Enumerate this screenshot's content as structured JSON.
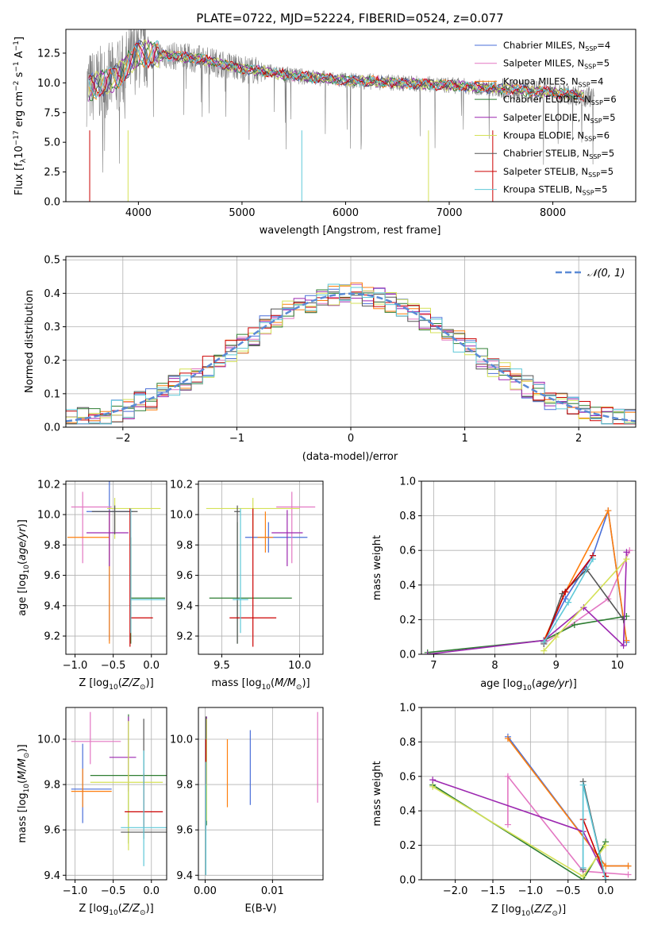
{
  "figure_title": "PLATE=0722, MJD=52224, FIBERID=0524, z=0.077",
  "colors": {
    "Chabrier MILES": "#4a6fd8",
    "Salpeter MILES": "#e377c2",
    "Kroupa MILES": "#ff7f0e",
    "Chabrier ELODIE": "#2e7d32",
    "Salpeter ELODIE": "#9c27b0",
    "Kroupa ELODIE": "#d4e157",
    "Chabrier STELIB": "#555555",
    "Salpeter STELIB": "#cc0000",
    "Kroupa STELIB": "#5ec8d8",
    "data": "#808080",
    "normal": "#5b8ad6"
  },
  "legend": [
    {
      "name": "Chabrier MILES",
      "nssp": "4"
    },
    {
      "name": "Salpeter MILES",
      "nssp": "5"
    },
    {
      "name": "Kroupa MILES",
      "nssp": "4"
    },
    {
      "name": "Chabrier ELODIE",
      "nssp": "6"
    },
    {
      "name": "Salpeter ELODIE",
      "nssp": "5"
    },
    {
      "name": "Kroupa ELODIE",
      "nssp": "6"
    },
    {
      "name": "Chabrier STELIB",
      "nssp": "5"
    },
    {
      "name": "Salpeter STELIB",
      "nssp": "5"
    },
    {
      "name": "Kroupa STELIB",
      "nssp": "5"
    }
  ],
  "chart_data": [
    {
      "type": "line",
      "xlabel": "wavelength [Angstrom, rest frame]",
      "ylabel": "Flux [f_λ10^-17 erg cm^-2 s^-1 A^-1]",
      "xlim": [
        3300,
        8800
      ],
      "ylim": [
        0,
        14.5
      ],
      "xticks": [
        "4000",
        "5000",
        "6000",
        "7000",
        "8000"
      ],
      "yticks": [
        "0.0",
        "2.5",
        "5.0",
        "7.5",
        "10.0",
        "12.5"
      ],
      "data_x_range": [
        3500,
        8400
      ],
      "approx_continuum": [
        [
          3500,
          9.5
        ],
        [
          3800,
          10.5
        ],
        [
          4000,
          12.5
        ],
        [
          4300,
          12.3
        ],
        [
          4600,
          12
        ],
        [
          5000,
          11.2
        ],
        [
          5500,
          10.6
        ],
        [
          6000,
          10.2
        ],
        [
          6500,
          10
        ],
        [
          7000,
          9.8
        ],
        [
          7500,
          9.5
        ],
        [
          8000,
          9.2
        ],
        [
          8400,
          8.8
        ]
      ]
    },
    {
      "type": "line",
      "xlabel": "(data-model)/error",
      "ylabel": "Normed distribution",
      "xlim": [
        -2.5,
        2.5
      ],
      "ylim": [
        0,
        0.51
      ],
      "xticks": [
        "−2",
        "−1",
        "0",
        "1",
        "2"
      ],
      "yticks": [
        "0.0",
        "0.1",
        "0.2",
        "0.3",
        "0.4",
        "0.5"
      ],
      "legend": "𝒩(0, 1)",
      "normal_mean": 0,
      "normal_sigma": 1
    },
    {
      "type": "scatter",
      "xlabel": "Z [log10(Z/Z⊙)]",
      "ylabel": "age [log10(age/yr)]",
      "xlim": [
        -1.12,
        0.2
      ],
      "ylim": [
        9.08,
        10.22
      ],
      "xticks": [
        "−1.0",
        "−0.5",
        "0.0"
      ],
      "yticks": [
        "9.2",
        "9.4",
        "9.6",
        "9.8",
        "10.0",
        "10.2"
      ],
      "points": [
        {
          "s": "Chabrier MILES",
          "x": -0.55,
          "y": 10.02,
          "xe": [
            0.3,
            0.3
          ],
          "ye": [
            0.85,
            0.2
          ]
        },
        {
          "s": "Salpeter MILES",
          "x": -0.9,
          "y": 10.05,
          "xe": [
            0.15,
            0.38
          ],
          "ye": [
            0.37,
            0.1
          ]
        },
        {
          "s": "Kroupa MILES",
          "x": -0.55,
          "y": 9.85,
          "xe": [
            0.55,
            0
          ],
          "ye": [
            0.7,
            0.17
          ]
        },
        {
          "s": "Chabrier ELODIE",
          "x": -0.27,
          "y": 9.45,
          "xe": [
            0,
            0.45
          ],
          "ye": [
            0.3,
            0.4
          ]
        },
        {
          "s": "Salpeter ELODIE",
          "x": -0.55,
          "y": 9.88,
          "xe": [
            0.3,
            0.25
          ],
          "ye": [
            0.22,
            0.15
          ]
        },
        {
          "s": "Kroupa ELODIE",
          "x": -0.48,
          "y": 10.04,
          "xe": [
            0.1,
            0.6
          ],
          "ye": [
            0.2,
            0.07
          ]
        },
        {
          "s": "Chabrier STELIB",
          "x": -0.48,
          "y": 10.02,
          "xe": [
            0.3,
            0.3
          ],
          "ye": [
            0.15,
            0.04
          ]
        },
        {
          "s": "Salpeter STELIB",
          "x": -0.28,
          "y": 9.32,
          "xe": [
            0,
            0.3
          ],
          "ye": [
            0.19,
            0.72
          ]
        },
        {
          "s": "Kroupa STELIB",
          "x": -0.27,
          "y": 9.44,
          "xe": [
            0,
            0.45
          ],
          "ye": [
            0.22,
            0.6
          ]
        }
      ]
    },
    {
      "type": "scatter",
      "xlabel": "mass [log10(M/M⊙)]",
      "ylabel": "",
      "xlim": [
        9.35,
        10.15
      ],
      "ylim": [
        9.08,
        10.22
      ],
      "xticks": [
        "9.5",
        "10.0"
      ],
      "yticks": [
        "9.2",
        "9.4",
        "9.6",
        "9.8",
        "10.0",
        "10.2"
      ],
      "points": [
        {
          "s": "Chabrier MILES",
          "x": 9.8,
          "y": 9.85,
          "xe": [
            0.15,
            0.25
          ],
          "ye": [
            0.1,
            0.1
          ]
        },
        {
          "s": "Salpeter MILES",
          "x": 9.95,
          "y": 10.05,
          "xe": [
            0.1,
            0.15
          ],
          "ye": [
            0.37,
            0.1
          ]
        },
        {
          "s": "Kroupa MILES",
          "x": 9.78,
          "y": 9.85,
          "xe": [
            0.05,
            0.05
          ],
          "ye": [
            0.1,
            0.17
          ]
        },
        {
          "s": "Chabrier ELODIE",
          "x": 9.6,
          "y": 9.45,
          "xe": [
            0.18,
            0.35
          ],
          "ye": [
            0.3,
            0.5
          ]
        },
        {
          "s": "Salpeter ELODIE",
          "x": 9.92,
          "y": 9.88,
          "xe": [
            0.1,
            0.1
          ],
          "ye": [
            0.22,
            0.15
          ]
        },
        {
          "s": "Kroupa ELODIE",
          "x": 9.7,
          "y": 10.04,
          "xe": [
            0.3,
            0.3
          ],
          "ye": [
            0.2,
            0.07
          ]
        },
        {
          "s": "Chabrier STELIB",
          "x": 9.6,
          "y": 10.02,
          "xe": [
            0.02,
            0.02
          ],
          "ye": [
            0.87,
            0.04
          ]
        },
        {
          "s": "Salpeter STELIB",
          "x": 9.7,
          "y": 9.32,
          "xe": [
            0.15,
            0.15
          ],
          "ye": [
            0.19,
            0.72
          ]
        },
        {
          "s": "Kroupa STELIB",
          "x": 9.62,
          "y": 9.44,
          "xe": [
            0.05,
            0.05
          ],
          "ye": [
            0.22,
            0.6
          ]
        }
      ]
    },
    {
      "type": "line",
      "xlabel": "age [log10(age/yr)]",
      "ylabel": "mass weight",
      "xlim": [
        6.8,
        10.3
      ],
      "ylim": [
        0,
        1
      ],
      "xticks": [
        "7",
        "8",
        "9",
        "10"
      ],
      "yticks": [
        "0.0",
        "0.2",
        "0.4",
        "0.6",
        "0.8",
        "1.0"
      ],
      "series": [
        {
          "s": "Chabrier MILES",
          "x": [
            8.8,
            9.15,
            9.6,
            9.85,
            10.15
          ],
          "y": [
            0.08,
            0.32,
            0.57,
            0.83,
            0.07
          ]
        },
        {
          "s": "Salpeter MILES",
          "x": [
            8.8,
            9.85,
            10.2
          ],
          "y": [
            0.06,
            0.32,
            0.6
          ]
        },
        {
          "s": "Kroupa MILES",
          "x": [
            8.8,
            9.15,
            9.85,
            10.15
          ],
          "y": [
            0.08,
            0.36,
            0.83,
            0.08
          ]
        },
        {
          "s": "Chabrier ELODIE",
          "x": [
            6.9,
            8.8,
            9.3,
            10.15
          ],
          "y": [
            0.01,
            0.08,
            0.17,
            0.22
          ]
        },
        {
          "s": "Salpeter ELODIE",
          "x": [
            6.9,
            8.8,
            9.45,
            10.1,
            10.15
          ],
          "y": [
            0.0,
            0.08,
            0.27,
            0.05,
            0.59
          ]
        },
        {
          "s": "Kroupa ELODIE",
          "x": [
            8.8,
            9.0,
            10.15
          ],
          "y": [
            0.02,
            0.1,
            0.55
          ]
        },
        {
          "s": "Chabrier STELIB",
          "x": [
            8.8,
            9.1,
            9.5,
            10.1
          ],
          "y": [
            0.06,
            0.35,
            0.49,
            0.2
          ]
        },
        {
          "s": "Salpeter STELIB",
          "x": [
            8.8,
            9.15,
            9.6
          ],
          "y": [
            0.07,
            0.36,
            0.57
          ]
        },
        {
          "s": "Kroupa STELIB",
          "x": [
            8.8,
            9.2,
            9.6
          ],
          "y": [
            0.07,
            0.3,
            0.55
          ]
        }
      ]
    },
    {
      "type": "scatter",
      "xlabel": "Z [log10(Z/Z⊙)]",
      "ylabel": "mass [log10(M/M⊙)]",
      "xlim": [
        -1.12,
        0.2
      ],
      "ylim": [
        9.38,
        10.14
      ],
      "xticks": [
        "−1.0",
        "−0.5",
        "0.0"
      ],
      "yticks": [
        "9.4",
        "9.6",
        "9.8",
        "10.0"
      ],
      "points": [
        {
          "s": "Chabrier MILES",
          "x": -0.9,
          "y": 9.78,
          "xe": [
            0.15,
            0.38
          ],
          "ye": [
            0.15,
            0.2
          ]
        },
        {
          "s": "Salpeter MILES",
          "x": -0.8,
          "y": 9.99,
          "xe": [
            0.25,
            0.4
          ],
          "ye": [
            0.1,
            0.13
          ]
        },
        {
          "s": "Kroupa MILES",
          "x": -0.9,
          "y": 9.77,
          "xe": [
            0.15,
            0.38
          ],
          "ye": [
            0.07,
            0.1
          ]
        },
        {
          "s": "Chabrier ELODIE",
          "x": -0.3,
          "y": 9.84,
          "xe": [
            0.5,
            0.5
          ],
          "ye": [
            0.3,
            0.27
          ]
        },
        {
          "s": "Salpeter ELODIE",
          "x": -0.3,
          "y": 9.92,
          "xe": [
            0.25,
            0.1
          ],
          "ye": [
            0.15,
            0.18
          ]
        },
        {
          "s": "Kroupa ELODIE",
          "x": -0.3,
          "y": 9.81,
          "xe": [
            0.5,
            0.45
          ],
          "ye": [
            0.3,
            0.27
          ]
        },
        {
          "s": "Chabrier STELIB",
          "x": -0.1,
          "y": 9.59,
          "xe": [
            0.3,
            0.3
          ],
          "ye": [
            0.03,
            0.5
          ]
        },
        {
          "s": "Salpeter STELIB",
          "x": -0.1,
          "y": 9.68,
          "xe": [
            0.25,
            0.25
          ],
          "ye": [
            0.07,
            0.17
          ]
        },
        {
          "s": "Kroupa STELIB",
          "x": -0.1,
          "y": 9.61,
          "xe": [
            0.3,
            0.3
          ],
          "ye": [
            0.17,
            0.34
          ]
        }
      ]
    },
    {
      "type": "scatter",
      "xlabel": "E(B-V)",
      "ylabel": "",
      "xlim": [
        -0.001,
        0.0175
      ],
      "ylim": [
        9.38,
        10.14
      ],
      "xticks": [
        "0.00",
        "0.01"
      ],
      "yticks": [
        "9.4",
        "9.6",
        "9.8",
        "10.0"
      ],
      "points": [
        {
          "s": "Chabrier MILES",
          "x": 0.0067,
          "y": 9.85,
          "ye": [
            0.14,
            0.19
          ]
        },
        {
          "s": "Salpeter MILES",
          "x": 0.0167,
          "y": 9.97,
          "ye": [
            0.25,
            0.15
          ]
        },
        {
          "s": "Kroupa MILES",
          "x": 0.0033,
          "y": 9.83,
          "ye": [
            0.13,
            0.17
          ]
        },
        {
          "s": "Chabrier ELODIE",
          "x": 0.0002,
          "y": 9.9,
          "ye": [
            0.28,
            0.2
          ]
        },
        {
          "s": "Salpeter ELODIE",
          "x": 0.0002,
          "y": 9.95,
          "ye": [
            0.15,
            0.15
          ]
        },
        {
          "s": "Kroupa ELODIE",
          "x": 0.0002,
          "y": 9.94,
          "ye": [
            0.3,
            0.15
          ]
        },
        {
          "s": "Chabrier STELIB",
          "x": 0.0001,
          "y": 9.6,
          "ye": [
            0.2,
            0.5
          ]
        },
        {
          "s": "Salpeter STELIB",
          "x": 0.0001,
          "y": 9.9,
          "ye": [
            0.1,
            0.1
          ]
        },
        {
          "s": "Kroupa STELIB",
          "x": 0.0001,
          "y": 9.6,
          "ye": [
            0.2,
            0.3
          ]
        }
      ]
    },
    {
      "type": "line",
      "xlabel": "Z [log10(Z/Z⊙)]",
      "ylabel": "mass weight",
      "xlim": [
        -2.45,
        0.4
      ],
      "ylim": [
        0,
        1
      ],
      "xticks": [
        "−2.0",
        "−1.5",
        "−1.0",
        "−0.5",
        "0.0"
      ],
      "yticks": [
        "0.0",
        "0.2",
        "0.4",
        "0.6",
        "0.8",
        "1.0"
      ],
      "series": [
        {
          "s": "Chabrier MILES",
          "x": [
            -1.3,
            0,
            0.3
          ],
          "y": [
            0.83,
            0.08,
            0.08
          ]
        },
        {
          "s": "Salpeter MILES",
          "x": [
            -1.3,
            -1.3,
            -0.3,
            0.3
          ],
          "y": [
            0.32,
            0.6,
            0.05,
            0.03
          ]
        },
        {
          "s": "Kroupa MILES",
          "x": [
            -1.3,
            0,
            0.3
          ],
          "y": [
            0.82,
            0.08,
            0.08
          ]
        },
        {
          "s": "Chabrier ELODIE",
          "x": [
            -2.3,
            -0.3,
            0
          ],
          "y": [
            0.55,
            0.0,
            0.22
          ]
        },
        {
          "s": "Salpeter ELODIE",
          "x": [
            -2.3,
            -0.3,
            0
          ],
          "y": [
            0.58,
            0.28,
            0.02
          ]
        },
        {
          "s": "Kroupa ELODIE",
          "x": [
            -2.3,
            -0.3,
            0
          ],
          "y": [
            0.54,
            0.02,
            0.2
          ]
        },
        {
          "s": "Chabrier STELIB",
          "x": [
            -0.3,
            -0.3,
            0
          ],
          "y": [
            0.06,
            0.57,
            0.0
          ]
        },
        {
          "s": "Salpeter STELIB",
          "x": [
            -0.3,
            0
          ],
          "y": [
            0.35,
            0.02
          ]
        },
        {
          "s": "Kroupa STELIB",
          "x": [
            -0.3,
            -0.3,
            0
          ],
          "y": [
            0.07,
            0.55,
            0.0
          ]
        }
      ]
    }
  ]
}
